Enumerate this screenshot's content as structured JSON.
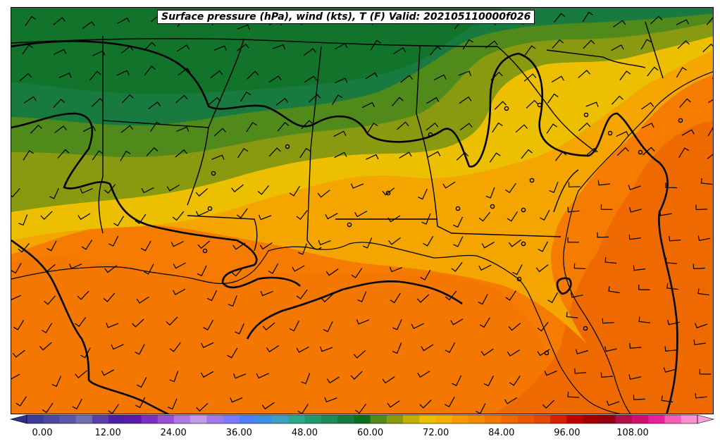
{
  "title": "Surface pressure (hPa), wind (kts), T (F) Valid: 202105110000f026",
  "colorbar": {
    "tick_labels": [
      "0.00",
      "12.00",
      "24.00",
      "36.00",
      "48.00",
      "60.00",
      "72.00",
      "84.00",
      "96.00",
      "108.00"
    ],
    "range": [
      0,
      120
    ],
    "colors": [
      "#3b3b9a",
      "#4a4a9e",
      "#5858a6",
      "#6f6fb0",
      "#5a3fa8",
      "#4e1fa2",
      "#5a1aa6",
      "#7a2fc0",
      "#9a4fd0",
      "#b27ae0",
      "#c49ae6",
      "#a07ae8",
      "#7a7aff",
      "#4f7ff0",
      "#3f8fe0",
      "#3fa0c0",
      "#2ea88a",
      "#21996a",
      "#1e8a55",
      "#187a3e",
      "#0f6e1e",
      "#4f8a1a",
      "#8a9a10",
      "#c0b000",
      "#ecc000",
      "#f3b000",
      "#f59a00",
      "#f38a00",
      "#f07a00",
      "#ee6a00",
      "#e85a00",
      "#e24a00",
      "#d81f00",
      "#c00000",
      "#a00000",
      "#900010",
      "#b0104a",
      "#d01070",
      "#e8209a",
      "#f060b8",
      "#ff90d0"
    ]
  },
  "map": {
    "region": "Southeastern United States",
    "fill_colors": {
      "dark_green": "#187a3e",
      "green": "#4f8a1a",
      "olive": "#8a9a10",
      "yellow": "#ecc000",
      "light_orange": "#f5a500",
      "orange": "#f57c00",
      "deep_orange": "#ee6a00"
    }
  }
}
